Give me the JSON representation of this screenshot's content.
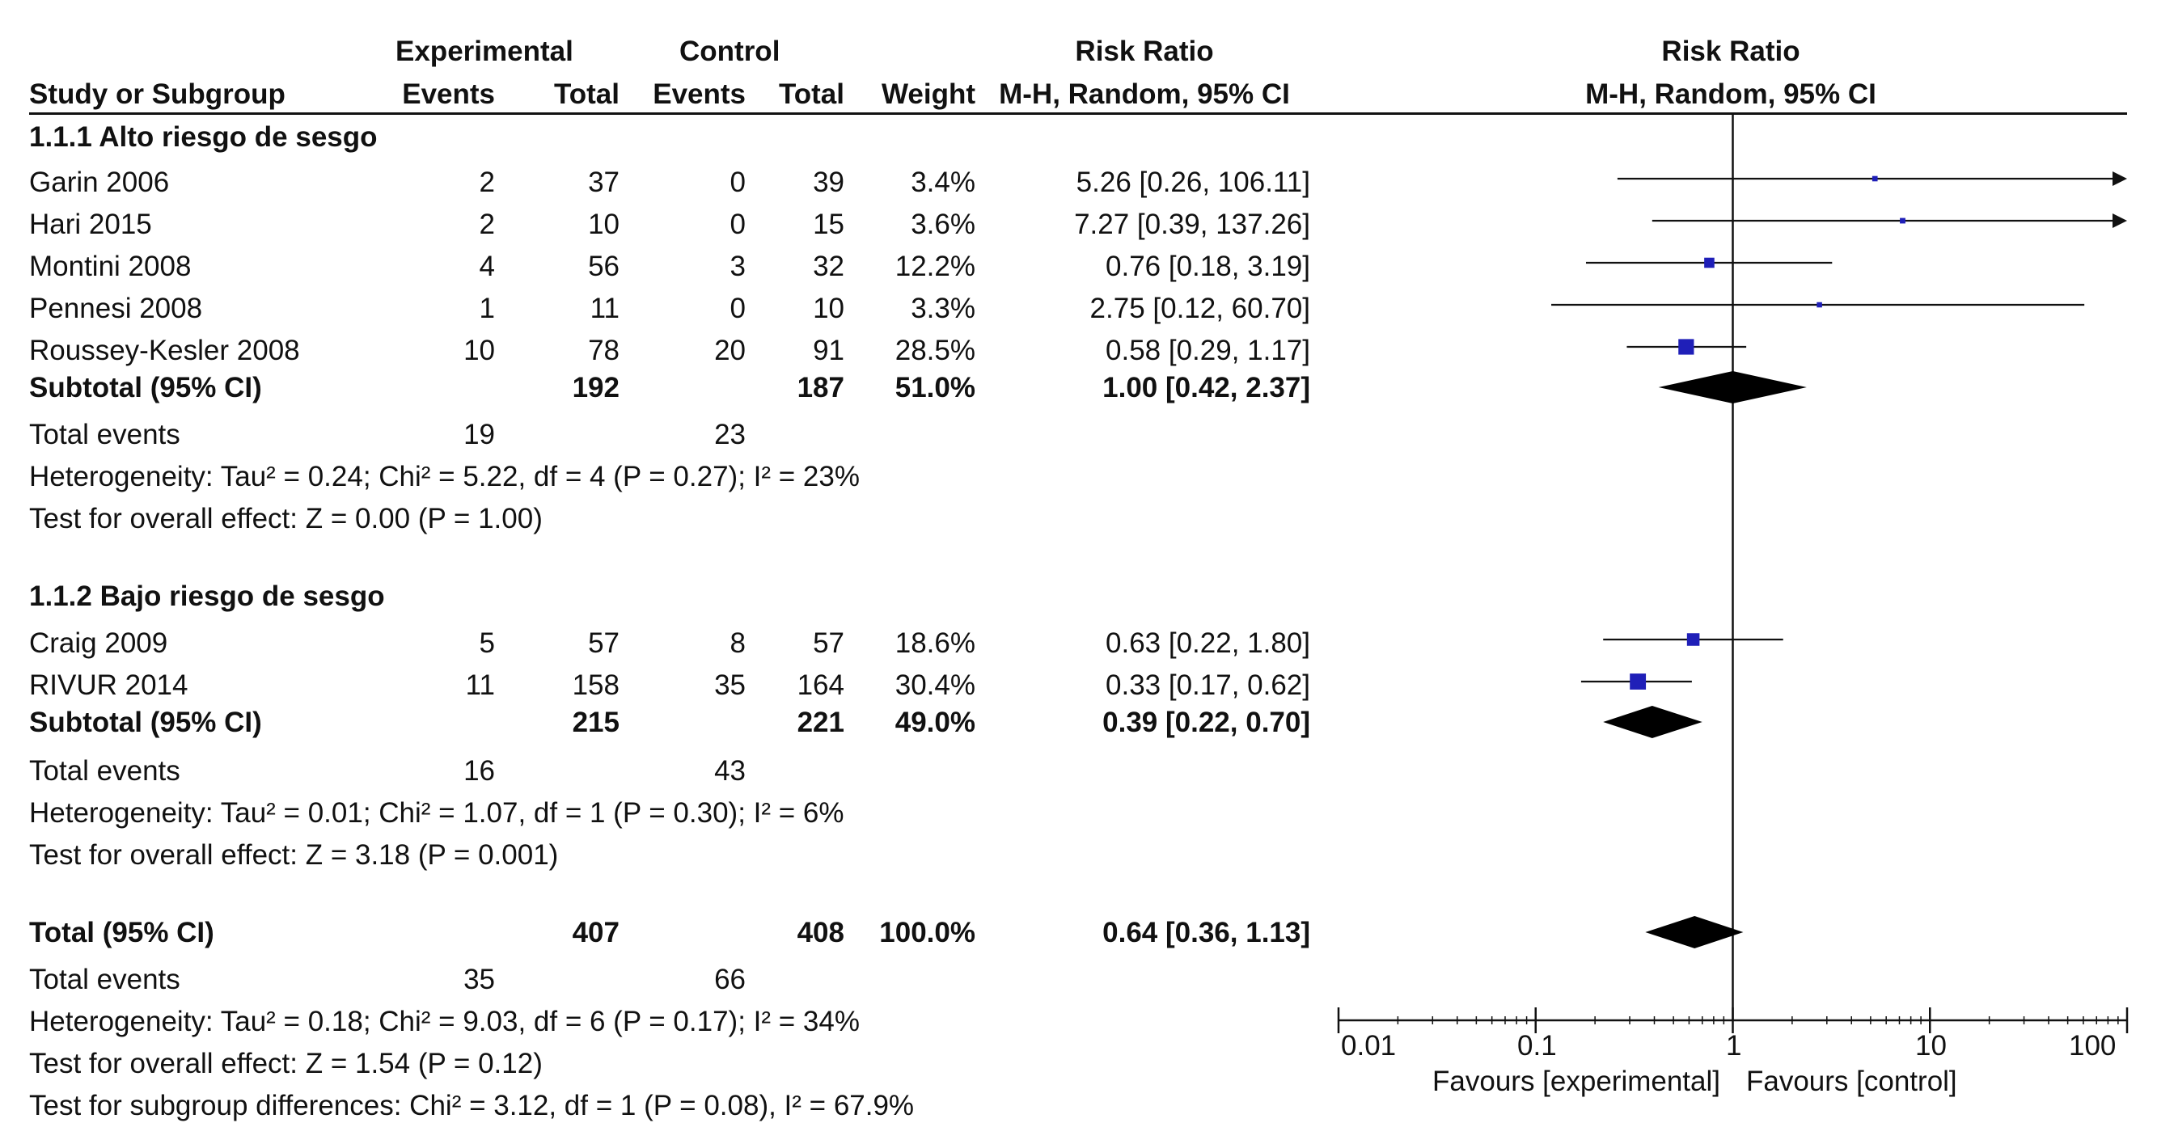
{
  "header": {
    "study_col": "Study or Subgroup",
    "experimental": "Experimental",
    "control": "Control",
    "events": "Events",
    "total": "Total",
    "weight": "Weight",
    "risk_ratio": "Risk Ratio",
    "method": "M-H, Random, 95% CI",
    "plot_title": "Risk Ratio",
    "plot_method": "M-H, Random, 95% CI"
  },
  "groups": [
    {
      "title": "1.1.1 Alto riesgo de sesgo",
      "studies": [
        {
          "name": "Garin 2006",
          "e_events": "2",
          "e_total": "37",
          "c_events": "0",
          "c_total": "39",
          "weight": "3.4%",
          "ci": "5.26 [0.26, 106.11]"
        },
        {
          "name": "Hari 2015",
          "e_events": "2",
          "e_total": "10",
          "c_events": "0",
          "c_total": "15",
          "weight": "3.6%",
          "ci": "7.27 [0.39, 137.26]"
        },
        {
          "name": "Montini 2008",
          "e_events": "4",
          "e_total": "56",
          "c_events": "3",
          "c_total": "32",
          "weight": "12.2%",
          "ci": "0.76 [0.18, 3.19]"
        },
        {
          "name": "Pennesi 2008",
          "e_events": "1",
          "e_total": "11",
          "c_events": "0",
          "c_total": "10",
          "weight": "3.3%",
          "ci": "2.75 [0.12, 60.70]"
        },
        {
          "name": "Roussey-Kesler 2008",
          "e_events": "10",
          "e_total": "78",
          "c_events": "20",
          "c_total": "91",
          "weight": "28.5%",
          "ci": "0.58 [0.29, 1.17]"
        }
      ],
      "subtotal": {
        "label": "Subtotal (95% CI)",
        "e_total": "192",
        "c_total": "187",
        "weight": "51.0%",
        "ci": "1.00 [0.42, 2.37]"
      },
      "total_events": {
        "label": "Total events",
        "e": "19",
        "c": "23"
      },
      "heterogeneity": "Heterogeneity: Tau² = 0.24; Chi² = 5.22, df = 4 (P = 0.27); I² = 23%",
      "overall": "Test for overall effect: Z = 0.00 (P = 1.00)"
    },
    {
      "title": "1.1.2 Bajo riesgo de sesgo",
      "studies": [
        {
          "name": "Craig 2009",
          "e_events": "5",
          "e_total": "57",
          "c_events": "8",
          "c_total": "57",
          "weight": "18.6%",
          "ci": "0.63 [0.22, 1.80]"
        },
        {
          "name": "RIVUR 2014",
          "e_events": "11",
          "e_total": "158",
          "c_events": "35",
          "c_total": "164",
          "weight": "30.4%",
          "ci": "0.33 [0.17, 0.62]"
        }
      ],
      "subtotal": {
        "label": "Subtotal (95% CI)",
        "e_total": "215",
        "c_total": "221",
        "weight": "49.0%",
        "ci": "0.39 [0.22, 0.70]"
      },
      "total_events": {
        "label": "Total events",
        "e": "16",
        "c": "43"
      },
      "heterogeneity": "Heterogeneity: Tau² = 0.01; Chi² = 1.07, df = 1 (P = 0.30); I² = 6%",
      "overall": "Test for overall effect: Z = 3.18 (P = 0.001)"
    }
  ],
  "total": {
    "label": "Total (95% CI)",
    "e_total": "407",
    "c_total": "408",
    "weight": "100.0%",
    "ci": "0.64 [0.36, 1.13]"
  },
  "total_events": {
    "label": "Total events",
    "e": "35",
    "c": "66"
  },
  "heterogeneity": "Heterogeneity: Tau² = 0.18; Chi² = 9.03, df = 6 (P = 0.17); I² = 34%",
  "overall": "Test for overall effect: Z = 1.54 (P = 0.12)",
  "subgroup_diff": "Test for subgroup differences: Chi² = 3.12, df = 1 (P = 0.08), I² = 67.9%",
  "axis": {
    "ticks": [
      "0.01",
      "0.1",
      "1",
      "10",
      "100"
    ],
    "favours_left": "Favours [experimental]",
    "favours_right": "Favours [control]"
  },
  "colors": {
    "marker": "#1f1fb8",
    "diamond": "#000000",
    "line": "#111111"
  },
  "chart_data": {
    "type": "forest",
    "scale": "log",
    "xlim": [
      0.01,
      100
    ],
    "reference": 1,
    "studies": [
      {
        "name": "Garin 2006",
        "rr": 5.26,
        "lo": 0.26,
        "hi": 106.11,
        "weight": 3.4
      },
      {
        "name": "Hari 2015",
        "rr": 7.27,
        "lo": 0.39,
        "hi": 137.26,
        "weight": 3.6
      },
      {
        "name": "Montini 2008",
        "rr": 0.76,
        "lo": 0.18,
        "hi": 3.19,
        "weight": 12.2
      },
      {
        "name": "Pennesi 2008",
        "rr": 2.75,
        "lo": 0.12,
        "hi": 60.7,
        "weight": 3.3
      },
      {
        "name": "Roussey-Kesler 2008",
        "rr": 0.58,
        "lo": 0.29,
        "hi": 1.17,
        "weight": 28.5
      },
      {
        "name": "Craig 2009",
        "rr": 0.63,
        "lo": 0.22,
        "hi": 1.8,
        "weight": 18.6
      },
      {
        "name": "RIVUR 2014",
        "rr": 0.33,
        "lo": 0.17,
        "hi": 0.62,
        "weight": 30.4
      }
    ],
    "diamonds": [
      {
        "name": "Subtotal 1.1.1",
        "rr": 1.0,
        "lo": 0.42,
        "hi": 2.37
      },
      {
        "name": "Subtotal 1.1.2",
        "rr": 0.39,
        "lo": 0.22,
        "hi": 0.7
      },
      {
        "name": "Total",
        "rr": 0.64,
        "lo": 0.36,
        "hi": 1.13
      }
    ]
  }
}
